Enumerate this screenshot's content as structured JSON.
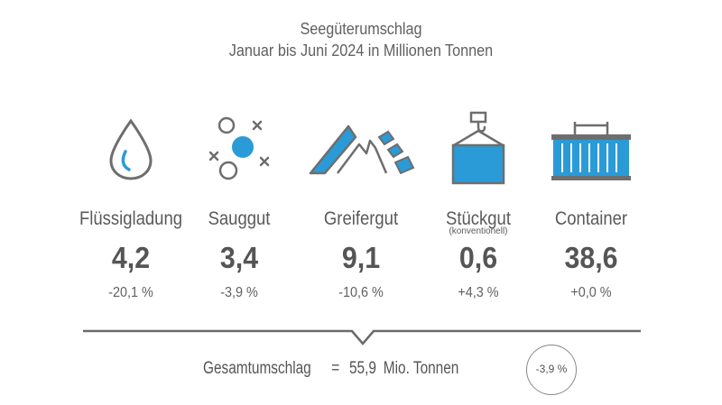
{
  "title": "Seegüterumschlag",
  "subtitle": "Januar bis Juni 2024 in Millionen Tonnen",
  "colors": {
    "accent": "#2a9bd7",
    "icon_gray": "#6e6e6e",
    "text": "#5a5a5a"
  },
  "chart_data": {
    "type": "table",
    "title": "Seegüterumschlag",
    "subtitle": "Januar bis Juni 2024 in Millionen Tonnen",
    "categories": [
      {
        "label": "Flüssigladung",
        "sublabel": "",
        "icon": "drop-icon",
        "value": "4,2",
        "change": "-20,1 %"
      },
      {
        "label": "Sauggut",
        "sublabel": "",
        "icon": "particles-icon",
        "value": "3,4",
        "change": "-3,9 %"
      },
      {
        "label": "Greifergut",
        "sublabel": "",
        "icon": "bulk-pile-icon",
        "value": "9,1",
        "change": "-10,6 %"
      },
      {
        "label": "Stückgut",
        "sublabel": "(konventionell)",
        "icon": "crane-cargo-icon",
        "value": "0,6",
        "change": "+4,3 %"
      },
      {
        "label": "Container",
        "sublabel": "",
        "icon": "container-icon",
        "value": "38,6",
        "change": "+0,0 %"
      }
    ],
    "total": {
      "label": "Gesamtumschlag",
      "equals": "=",
      "value": "55,9",
      "unit": "Mio. Tonnen",
      "change": "-3,9 %"
    }
  }
}
